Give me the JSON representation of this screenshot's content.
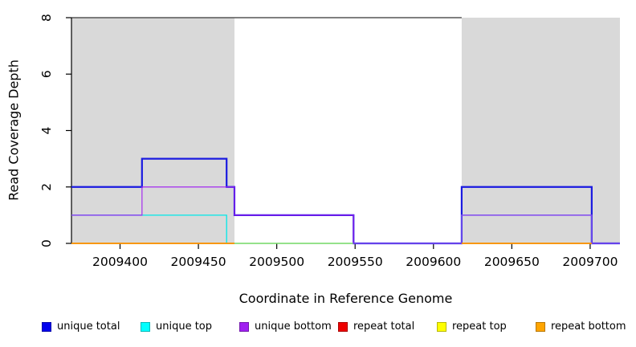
{
  "figure": {
    "background": "#ffffff",
    "xlabel": "Coordinate in Reference Genome",
    "ylabel": "Read Coverage Depth"
  },
  "legend": [
    {
      "label": "unique total",
      "color": "#0000ee"
    },
    {
      "label": "unique top",
      "color": "#00ffff"
    },
    {
      "label": "unique bottom",
      "color": "#a020f0"
    },
    {
      "label": "repeat total",
      "color": "#ee0000"
    },
    {
      "label": "repeat top",
      "color": "#ffff00"
    },
    {
      "label": "repeat bottom",
      "color": "#ffa500"
    }
  ],
  "chart_data": {
    "type": "line",
    "step": true,
    "title": "",
    "xlabel": "Coordinate in Reference Genome",
    "ylabel": "Read Coverage Depth",
    "xlim": [
      2009369,
      2009719
    ],
    "ylim": [
      0,
      8
    ],
    "x_ticks": [
      2009400,
      2009450,
      2009500,
      2009550,
      2009600,
      2009650,
      2009700
    ],
    "y_ticks": [
      0,
      2,
      4,
      6,
      8
    ],
    "grid": false,
    "legend_position": "bottom",
    "region_fill": "#d9d9d9",
    "repeat_regions": [
      [
        2009369,
        2009473
      ],
      [
        2009618,
        2009719
      ]
    ],
    "top_rule": {
      "y": 8,
      "x_from": 2009369,
      "x_to": 2009618,
      "color": "#555555"
    },
    "series": [
      {
        "name": "repeat total",
        "color": "#e60000",
        "width": 1.2,
        "opacity": 1,
        "segments": [
          {
            "x": [
              2009369
            ],
            "v": [
              0
            ],
            "end": 2009473
          },
          {
            "x": [
              2009618
            ],
            "v": [
              0
            ],
            "end": 2009701
          }
        ]
      },
      {
        "name": "unique total",
        "color": "#1a1ae0",
        "width": 2.2,
        "opacity": 1,
        "segments": [
          {
            "x": [
              2009369,
              2009414,
              2009468,
              2009473,
              2009549,
              2009618,
              2009701
            ],
            "v": [
              2,
              3,
              2,
              1,
              0,
              2,
              0
            ],
            "end": 2009719
          }
        ]
      },
      {
        "name": "unique top",
        "color": "#00e8e8",
        "width": 1.3,
        "opacity": 1,
        "segments": [
          {
            "x": [
              2009369,
              2009468,
              2009618,
              2009701
            ],
            "v": [
              1,
              0,
              1,
              0
            ],
            "end": 2009719
          }
        ]
      },
      {
        "name": "repeat top",
        "color": "#ffff00",
        "width": 1.3,
        "opacity": 0.55,
        "segments": [
          {
            "x": [
              2009369
            ],
            "v": [
              0
            ],
            "end": 2009549
          },
          {
            "x": [
              2009618
            ],
            "v": [
              0
            ],
            "end": 2009701
          }
        ]
      },
      {
        "name": "unique bottom",
        "color": "#a020f0",
        "width": 1.4,
        "opacity": 0.8,
        "segments": [
          {
            "x": [
              2009369,
              2009414,
              2009473,
              2009549,
              2009618,
              2009701
            ],
            "v": [
              1,
              2,
              1,
              0,
              1,
              0
            ],
            "end": 2009719
          }
        ]
      },
      {
        "name": "repeat bottom",
        "color": "#ff9700",
        "width": 1.8,
        "opacity": 1,
        "segments": [
          {
            "x": [
              2009369
            ],
            "v": [
              0
            ],
            "end": 2009473
          },
          {
            "x": [
              2009618
            ],
            "v": [
              0
            ],
            "end": 2009701
          }
        ]
      }
    ]
  }
}
